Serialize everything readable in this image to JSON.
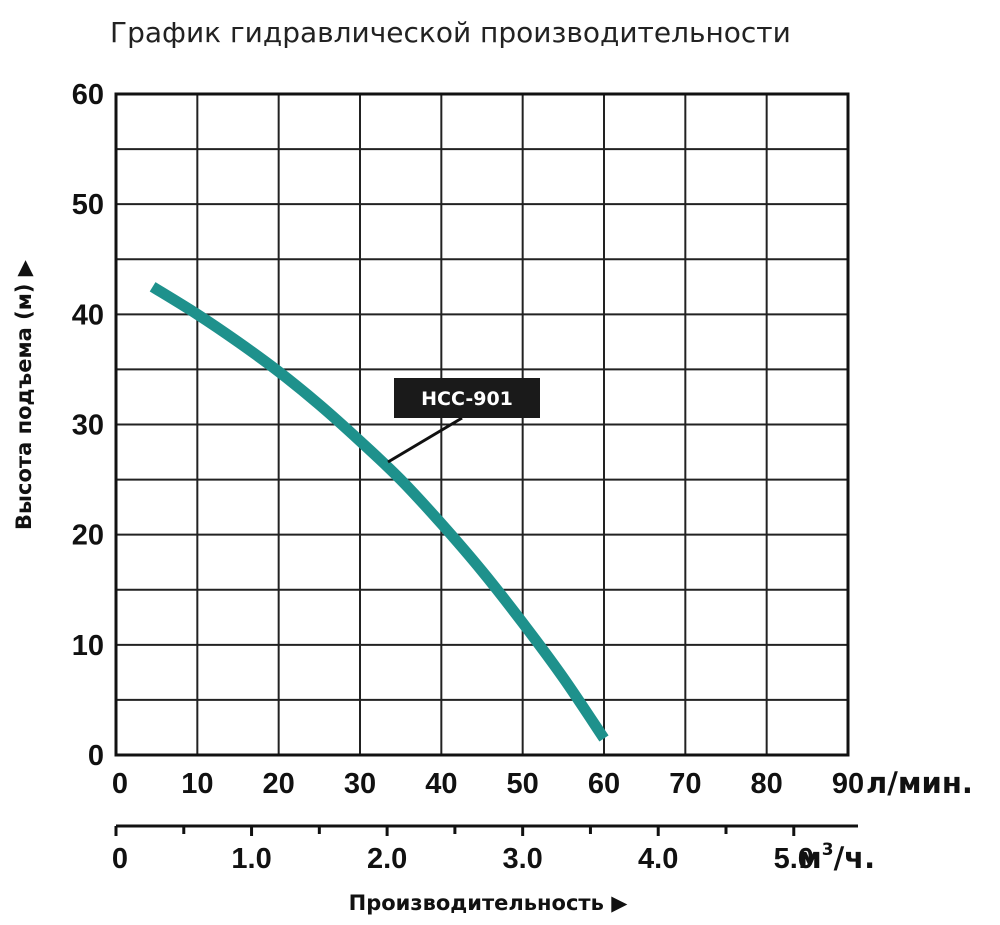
{
  "chart_data": {
    "type": "line",
    "title": "График гидравлической производительности",
    "ylabel": "Высота подъема (м)",
    "xlabel": "Производительность",
    "x_unit": "л/мин.",
    "x2_unit_base": "м",
    "x2_unit_exp": "3",
    "x2_unit_suffix": "/ч.",
    "xlim": [
      0,
      90
    ],
    "ylim": [
      0,
      60
    ],
    "x_ticks": [
      "0",
      "10",
      "20",
      "30",
      "40",
      "50",
      "60",
      "70",
      "80",
      "90"
    ],
    "y_ticks": [
      "0",
      "10",
      "20",
      "30",
      "40",
      "50",
      "60"
    ],
    "x2_ticks": [
      "0",
      "1.0",
      "2.0",
      "3.0",
      "4.0",
      "5.0"
    ],
    "x2_tick_values": [
      0,
      1,
      2,
      3,
      4,
      5
    ],
    "x2_minor_values": [
      0.5,
      1.5,
      2.5,
      3.5,
      4.5,
      5.5
    ],
    "grid": true,
    "line_color": "#1e918c",
    "series": [
      {
        "name": "HCC-901",
        "x": [
          4.5,
          10,
          15,
          20,
          25,
          30,
          35,
          40,
          45,
          50,
          55,
          60
        ],
        "y": [
          42.5,
          40,
          37.5,
          34.8,
          31.8,
          28.5,
          25,
          21,
          16.7,
          12,
          7,
          1.5
        ]
      }
    ]
  }
}
